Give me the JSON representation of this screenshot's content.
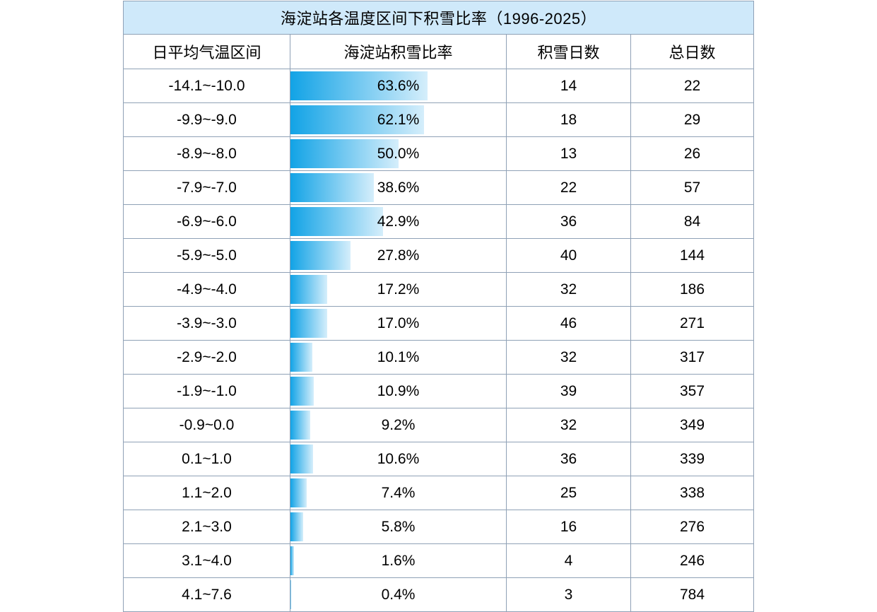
{
  "title": "海淀站各温度区间下积雪比率（1996-2025）",
  "columns": [
    "日平均气温区间",
    "海淀站积雪比率",
    "积雪日数",
    "总日数"
  ],
  "rows": [
    {
      "temp_range": "-14.1~-10.0",
      "ratio_label": "63.6%",
      "ratio_percent": 63.6,
      "snow_days": "14",
      "total_days": "22"
    },
    {
      "temp_range": "-9.9~-9.0",
      "ratio_label": "62.1%",
      "ratio_percent": 62.1,
      "snow_days": "18",
      "total_days": "29"
    },
    {
      "temp_range": "-8.9~-8.0",
      "ratio_label": "50.0%",
      "ratio_percent": 50.0,
      "snow_days": "13",
      "total_days": "26"
    },
    {
      "temp_range": "-7.9~-7.0",
      "ratio_label": "38.6%",
      "ratio_percent": 38.6,
      "snow_days": "22",
      "total_days": "57"
    },
    {
      "temp_range": "-6.9~-6.0",
      "ratio_label": "42.9%",
      "ratio_percent": 42.9,
      "snow_days": "36",
      "total_days": "84"
    },
    {
      "temp_range": "-5.9~-5.0",
      "ratio_label": "27.8%",
      "ratio_percent": 27.8,
      "snow_days": "40",
      "total_days": "144"
    },
    {
      "temp_range": "-4.9~-4.0",
      "ratio_label": "17.2%",
      "ratio_percent": 17.2,
      "snow_days": "32",
      "total_days": "186"
    },
    {
      "temp_range": "-3.9~-3.0",
      "ratio_label": "17.0%",
      "ratio_percent": 17.0,
      "snow_days": "46",
      "total_days": "271"
    },
    {
      "temp_range": "-2.9~-2.0",
      "ratio_label": "10.1%",
      "ratio_percent": 10.1,
      "snow_days": "32",
      "total_days": "317"
    },
    {
      "temp_range": "-1.9~-1.0",
      "ratio_label": "10.9%",
      "ratio_percent": 10.9,
      "snow_days": "39",
      "total_days": "357"
    },
    {
      "temp_range": "-0.9~0.0",
      "ratio_label": "9.2%",
      "ratio_percent": 9.2,
      "snow_days": "32",
      "total_days": "349"
    },
    {
      "temp_range": "0.1~1.0",
      "ratio_label": "10.6%",
      "ratio_percent": 10.6,
      "snow_days": "36",
      "total_days": "339"
    },
    {
      "temp_range": "1.1~2.0",
      "ratio_label": "7.4%",
      "ratio_percent": 7.4,
      "snow_days": "25",
      "total_days": "338"
    },
    {
      "temp_range": "2.1~3.0",
      "ratio_label": "5.8%",
      "ratio_percent": 5.8,
      "snow_days": "16",
      "total_days": "276"
    },
    {
      "temp_range": "3.1~4.0",
      "ratio_label": "1.6%",
      "ratio_percent": 1.6,
      "snow_days": "4",
      "total_days": "246"
    },
    {
      "temp_range": "4.1~7.6",
      "ratio_label": "0.4%",
      "ratio_percent": 0.4,
      "snow_days": "3",
      "total_days": "784"
    }
  ],
  "colors": {
    "title_bg": "#cfe9fa",
    "grid_line": "#8fa1b6",
    "bar_gradient_start": "#12a3e6",
    "bar_gradient_end": "#d5eefb",
    "text": "#000000"
  },
  "chart_data": {
    "type": "table",
    "title": "海淀站各温度区间下积雪比率（1996-2025）",
    "columns": [
      "日平均气温区间",
      "海淀站积雪比率",
      "积雪日数",
      "总日数"
    ],
    "categories": [
      "-14.1~-10.0",
      "-9.9~-9.0",
      "-8.9~-8.0",
      "-7.9~-7.0",
      "-6.9~-6.0",
      "-5.9~-5.0",
      "-4.9~-4.0",
      "-3.9~-3.0",
      "-2.9~-2.0",
      "-1.9~-1.0",
      "-0.9~0.0",
      "0.1~1.0",
      "1.1~2.0",
      "2.1~3.0",
      "3.1~4.0",
      "4.1~7.6"
    ],
    "series": [
      {
        "name": "海淀站积雪比率(%)",
        "values": [
          63.6,
          62.1,
          50.0,
          38.6,
          42.9,
          27.8,
          17.2,
          17.0,
          10.1,
          10.9,
          9.2,
          10.6,
          7.4,
          5.8,
          1.6,
          0.4
        ]
      },
      {
        "name": "积雪日数",
        "values": [
          14,
          18,
          13,
          22,
          36,
          40,
          32,
          46,
          32,
          39,
          32,
          36,
          25,
          16,
          4,
          3
        ]
      },
      {
        "name": "总日数",
        "values": [
          22,
          29,
          26,
          57,
          84,
          144,
          186,
          271,
          317,
          357,
          349,
          339,
          338,
          276,
          246,
          784
        ]
      }
    ],
    "layout": {
      "bar_scale_max_percent": 100,
      "bar_column": "海淀站积雪比率",
      "bar_fill": "gradient left-to-right"
    }
  }
}
